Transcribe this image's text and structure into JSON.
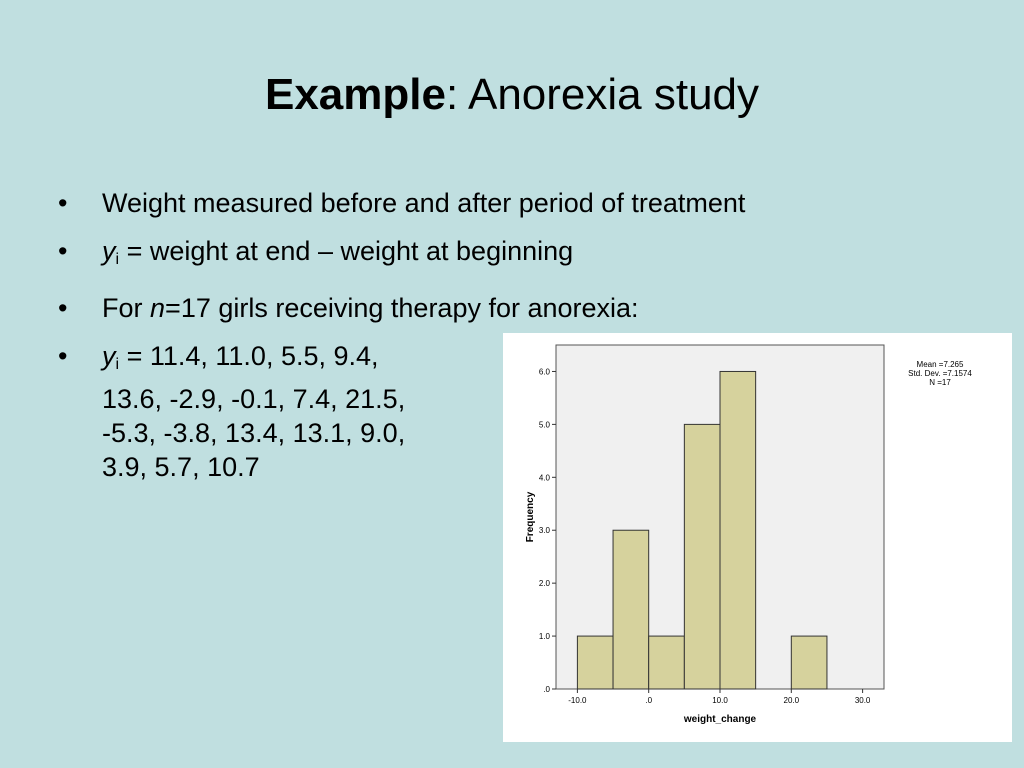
{
  "slide": {
    "title_strong": "Example",
    "title_rest": ": Anorexia study"
  },
  "bullets": [
    {
      "text": "Weight measured before and after period of treatment"
    },
    {
      "var": "y",
      "sub": "i",
      "text": " = weight at end – weight at beginning"
    },
    {
      "prefix": "For ",
      "var": "n",
      "text": "=17 girls receiving therapy for anorexia:"
    },
    {
      "var": "y",
      "sub": "i",
      "lines": [
        "= 11.4, 11.0, 5.5, 9.4,",
        "13.6, -2.9, -0.1, 7.4, 21.5,",
        "-5.3, -3.8, 13.4, 13.1, 9.0,",
        "3.9, 5.7, 10.7"
      ]
    }
  ],
  "bullet_glyph": "•",
  "stats": {
    "mean": "Mean =7.265",
    "sd": "Std. Dev. =7.1574",
    "n": "N =17"
  },
  "colors": {
    "bar_fill": "#d6d29d",
    "plot_bg": "#f0f0f0",
    "slide_bg": "#c0dfe0"
  },
  "chart_data": {
    "type": "bar",
    "subtype": "histogram",
    "xlabel": "weight_change",
    "ylabel": "Frequency",
    "bins": [
      {
        "from": -10,
        "to": -5,
        "count": 1
      },
      {
        "from": -5,
        "to": 0,
        "count": 3
      },
      {
        "from": 0,
        "to": 5,
        "count": 1
      },
      {
        "from": 5,
        "to": 10,
        "count": 5
      },
      {
        "from": 10,
        "to": 15,
        "count": 6
      },
      {
        "from": 15,
        "to": 20,
        "count": 0
      },
      {
        "from": 20,
        "to": 25,
        "count": 1
      }
    ],
    "xlim": [
      -13,
      33
    ],
    "ylim": [
      0,
      6.5
    ],
    "x_ticks": [
      -10,
      0,
      10,
      20,
      30
    ],
    "x_tick_labels": [
      "-10.0",
      ".0",
      "10.0",
      "20.0",
      "30.0"
    ],
    "y_ticks": [
      0,
      1,
      2,
      3,
      4,
      5,
      6
    ],
    "y_tick_labels": [
      ".0",
      "1.0",
      "2.0",
      "3.0",
      "4.0",
      "5.0",
      "6.0"
    ],
    "grid": false
  }
}
